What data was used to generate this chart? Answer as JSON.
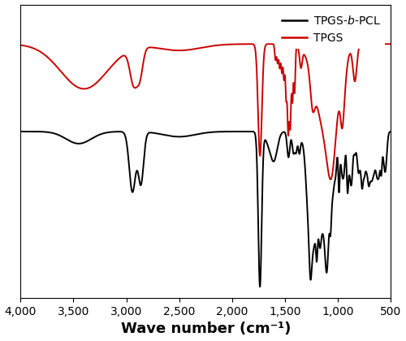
{
  "xlabel": "Wave number (cm⁻¹)",
  "xlim": [
    4000,
    500
  ],
  "xticks": [
    4000,
    3500,
    3000,
    2500,
    2000,
    1500,
    1000,
    500
  ],
  "xtick_labels": [
    "4,000",
    "3,500",
    "3,000",
    "2,500",
    "2,000",
    "1,500",
    "1,000",
    "500"
  ],
  "tpgs_color": "#cc0000",
  "pcl_color": "#000000",
  "background_color": "#ffffff",
  "linewidth_tpgs": 1.4,
  "linewidth_pcl": 1.4,
  "legend_labels": [
    "TPGS-$b$-PCL",
    "TPGS"
  ],
  "legend_colors": [
    "#000000",
    "#cc0000"
  ],
  "xlabel_fontsize": 13,
  "xlabel_fontweight": "bold",
  "tick_fontsize": 10
}
